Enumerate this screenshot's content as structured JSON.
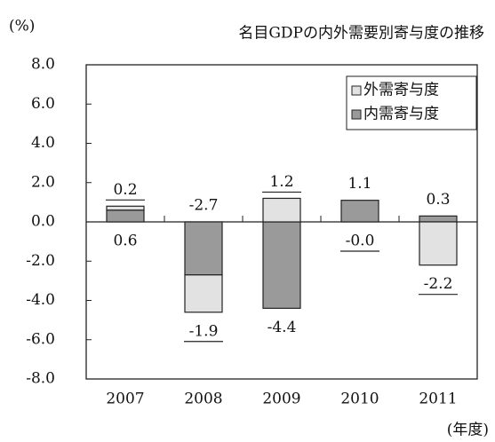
{
  "chart_data": {
    "type": "bar",
    "stacked": true,
    "title": "名目GDPの内外需要別寄与度の推移",
    "y_label": "(%)",
    "x_label": "(年度)",
    "categories": [
      "2007",
      "2008",
      "2009",
      "2010",
      "2011"
    ],
    "series": [
      {
        "name": "内需寄与度",
        "color": "#9a9a9a",
        "values": [
          0.6,
          -2.7,
          -4.4,
          1.1,
          0.3
        ],
        "value_labels": [
          "0.6",
          "-2.7",
          "-4.4",
          "1.1",
          "0.3"
        ]
      },
      {
        "name": "外需寄与度",
        "color": "#e2e2e2",
        "values": [
          0.2,
          -1.9,
          1.2,
          -0.0,
          -2.2
        ],
        "value_labels": [
          "0.2",
          "-1.9",
          "1.2",
          "-0.0",
          "-2.2"
        ]
      }
    ],
    "ylim": [
      -8,
      8
    ],
    "yticks": [
      {
        "value": -8,
        "label": "-8.0"
      },
      {
        "value": -6,
        "label": "-6.0"
      },
      {
        "value": -4,
        "label": "-4.0"
      },
      {
        "value": -2,
        "label": "-2.0"
      },
      {
        "value": 0,
        "label": "0.0"
      },
      {
        "value": 2,
        "label": "2.0"
      },
      {
        "value": 4,
        "label": "4.0"
      },
      {
        "value": 6,
        "label": "6.0"
      },
      {
        "value": 8,
        "label": "8.0"
      }
    ],
    "legend": "top-right"
  }
}
